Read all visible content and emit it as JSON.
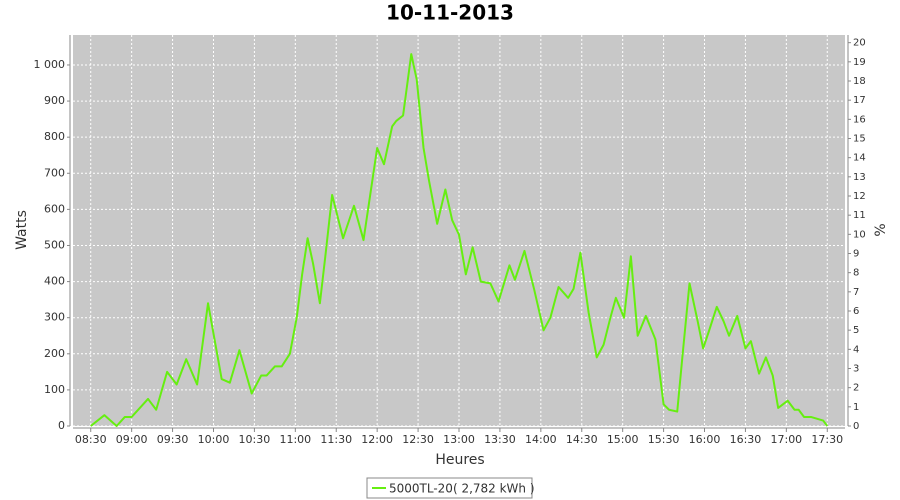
{
  "chart_data": {
    "type": "line",
    "title": "10-11-2013",
    "xlabel": "Heures",
    "ylabel": "Watts",
    "y2label": "%",
    "x": [
      "08:30",
      "08:40",
      "08:49",
      "08:55",
      "09:00",
      "09:12",
      "09:18",
      "09:26",
      "09:33",
      "09:40",
      "09:48",
      "09:56",
      "10:06",
      "10:12",
      "10:19",
      "10:28",
      "10:35",
      "10:39",
      "10:45",
      "10:50",
      "10:56",
      "11:01",
      "11:05",
      "11:09",
      "11:13",
      "11:18",
      "11:22",
      "11:27",
      "11:35",
      "11:43",
      "11:50",
      "12:00",
      "12:05",
      "12:11",
      "12:14",
      "12:19",
      "12:25",
      "12:29",
      "12:34",
      "12:38",
      "12:44",
      "12:50",
      "12:55",
      "13:00",
      "13:05",
      "13:10",
      "13:16",
      "13:23",
      "13:29",
      "13:37",
      "13:41",
      "13:48",
      "13:55",
      "14:02",
      "14:07",
      "14:13",
      "14:20",
      "14:24",
      "14:29",
      "14:35",
      "14:41",
      "14:46",
      "14:51",
      "14:55",
      "15:01",
      "15:06",
      "15:11",
      "15:17",
      "15:24",
      "15:30",
      "15:34",
      "15:40",
      "15:44",
      "15:49",
      "15:55",
      "15:59",
      "16:03",
      "16:09",
      "16:14",
      "16:18",
      "16:24",
      "16:30",
      "16:34",
      "16:40",
      "16:45",
      "16:50",
      "16:54",
      "17:01",
      "17:06",
      "17:09",
      "17:13",
      "17:18",
      "17:27",
      "17:30"
    ],
    "series": [
      {
        "name": "5000TL-20( 2,782 kWh )",
        "color": "#66ee11",
        "values": [
          0,
          30,
          0,
          25,
          25,
          75,
          45,
          150,
          115,
          185,
          115,
          340,
          130,
          120,
          210,
          90,
          140,
          140,
          165,
          165,
          200,
          300,
          420,
          520,
          450,
          340,
          470,
          640,
          520,
          610,
          515,
          770,
          725,
          830,
          845,
          860,
          1030,
          960,
          770,
          680,
          560,
          655,
          570,
          530,
          420,
          495,
          400,
          395,
          345,
          445,
          405,
          485,
          380,
          265,
          300,
          385,
          355,
          380,
          480,
          315,
          190,
          225,
          300,
          355,
          300,
          470,
          250,
          305,
          240,
          60,
          45,
          40,
          200,
          395,
          290,
          215,
          260,
          330,
          290,
          250,
          305,
          215,
          235,
          145,
          190,
          140,
          50,
          70,
          45,
          45,
          25,
          25,
          15,
          0
        ]
      }
    ],
    "xlim": [
      "08:17",
      "17:43"
    ],
    "xticks": [
      "08:30",
      "09:00",
      "09:30",
      "10:00",
      "10:30",
      "11:00",
      "11:30",
      "12:00",
      "12:30",
      "13:00",
      "13:30",
      "14:00",
      "14:30",
      "15:00",
      "15:30",
      "16:00",
      "16:30",
      "17:00",
      "17:30"
    ],
    "ylim": [
      0,
      1083
    ],
    "yticks": [
      0,
      100,
      200,
      300,
      400,
      500,
      600,
      700,
      800,
      900,
      {
        "value": 1000,
        "label": "1 000"
      }
    ],
    "y2lim": [
      0,
      20.4
    ],
    "y2ticks": [
      0,
      1,
      2,
      3,
      4,
      5,
      6,
      7,
      8,
      9,
      10,
      11,
      12,
      13,
      14,
      15,
      16,
      17,
      18,
      19,
      20
    ],
    "grid": true,
    "legend": "bottom"
  }
}
